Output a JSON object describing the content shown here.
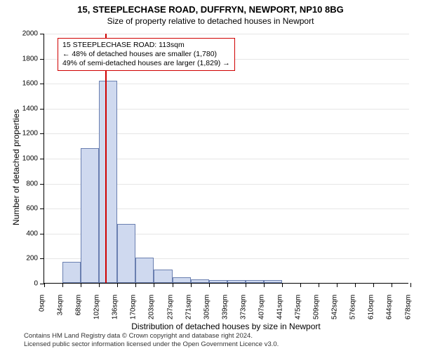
{
  "title": "15, STEEPLECHASE ROAD, DUFFRYN, NEWPORT, NP10 8BG",
  "subtitle": "Size of property relative to detached houses in Newport",
  "footer_line1": "Contains HM Land Registry data © Crown copyright and database right 2024.",
  "footer_line2": "Licensed public sector information licensed under the Open Government Licence v3.0.",
  "axis": {
    "x_label": "Distribution of detached houses by size in Newport",
    "y_label": "Number of detached properties",
    "x_ticks": [
      "0sqm",
      "34sqm",
      "68sqm",
      "102sqm",
      "136sqm",
      "170sqm",
      "203sqm",
      "237sqm",
      "271sqm",
      "305sqm",
      "339sqm",
      "373sqm",
      "407sqm",
      "441sqm",
      "475sqm",
      "509sqm",
      "542sqm",
      "576sqm",
      "610sqm",
      "644sqm",
      "678sqm"
    ],
    "y_ticks": [
      0,
      200,
      400,
      600,
      800,
      1000,
      1200,
      1400,
      1600,
      1800,
      2000
    ]
  },
  "chart": {
    "type": "histogram",
    "x_max": 678,
    "y_max": 2000,
    "bin_width": 34,
    "bar_fill": "#cfd9ef",
    "bar_stroke": "#6a7fb0",
    "grid_color": "#e6e6e6",
    "background": "#ffffff",
    "marker_color": "#d00000",
    "marker_x": 113,
    "values": [
      0,
      170,
      1080,
      1620,
      470,
      200,
      105,
      45,
      30,
      25,
      20,
      25,
      20,
      0,
      0,
      0,
      0,
      0,
      0,
      0
    ]
  },
  "annotation": {
    "line1": "15 STEEPLECHASE ROAD: 113sqm",
    "line2": "← 48% of detached houses are smaller (1,780)",
    "line3": "49% of semi-detached houses are larger (1,829) →"
  }
}
